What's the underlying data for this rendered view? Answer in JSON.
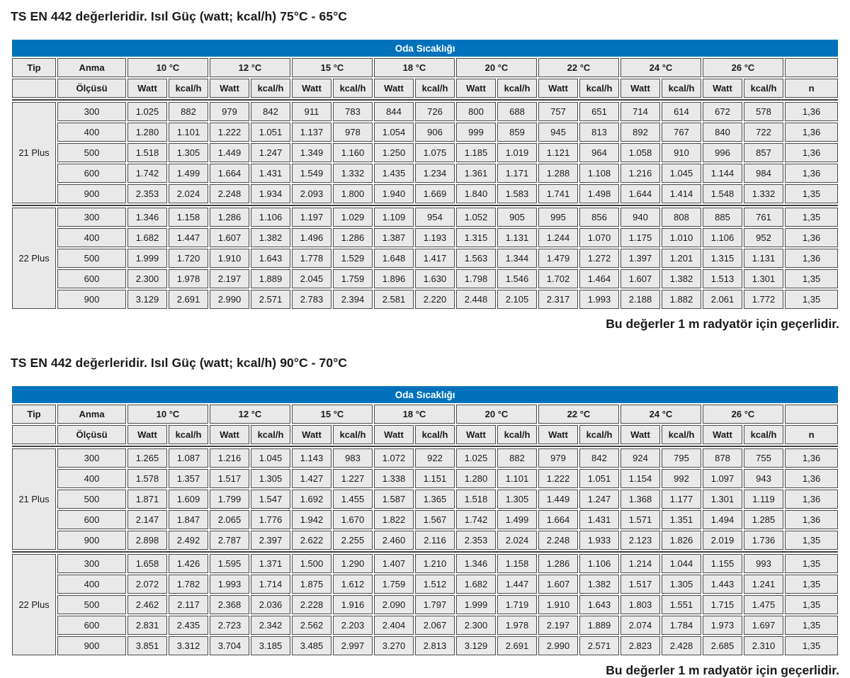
{
  "accent_color": "#0072bc",
  "banner_label": "Oda Sıcaklığı",
  "columns": {
    "tip_label": "Tip",
    "anma_label": "Anma",
    "olcusu_label": "Ölçüsü",
    "watt_label": "Watt",
    "kcal_label": "kcal/h",
    "n_label": "n",
    "temperatures": [
      "10 °C",
      "12 °C",
      "15 °C",
      "18 °C",
      "20 °C",
      "22 °C",
      "24 °C",
      "26 °C"
    ]
  },
  "tables": [
    {
      "title": "TS EN 442 değerleridir. Isıl Güç (watt; kcal/h) 75°C - 65°C",
      "footnote": "Bu değerler 1 m radyatör için geçerlidir.",
      "groups": [
        {
          "tip": "21 Plus",
          "rows": [
            {
              "size": "300",
              "values": [
                "1.025",
                "882",
                "979",
                "842",
                "911",
                "783",
                "844",
                "726",
                "800",
                "688",
                "757",
                "651",
                "714",
                "614",
                "672",
                "578"
              ],
              "n": "1,36"
            },
            {
              "size": "400",
              "values": [
                "1.280",
                "1.101",
                "1.222",
                "1.051",
                "1.137",
                "978",
                "1.054",
                "906",
                "999",
                "859",
                "945",
                "813",
                "892",
                "767",
                "840",
                "722"
              ],
              "n": "1,36"
            },
            {
              "size": "500",
              "values": [
                "1.518",
                "1.305",
                "1.449",
                "1.247",
                "1.349",
                "1.160",
                "1.250",
                "1.075",
                "1.185",
                "1.019",
                "1.121",
                "964",
                "1.058",
                "910",
                "996",
                "857"
              ],
              "n": "1,36"
            },
            {
              "size": "600",
              "values": [
                "1.742",
                "1.499",
                "1.664",
                "1.431",
                "1.549",
                "1.332",
                "1.435",
                "1.234",
                "1.361",
                "1.171",
                "1.288",
                "1.108",
                "1.216",
                "1.045",
                "1.144",
                "984"
              ],
              "n": "1,36"
            },
            {
              "size": "900",
              "values": [
                "2.353",
                "2.024",
                "2.248",
                "1.934",
                "2.093",
                "1.800",
                "1.940",
                "1.669",
                "1.840",
                "1.583",
                "1.741",
                "1.498",
                "1.644",
                "1.414",
                "1.548",
                "1.332"
              ],
              "n": "1,35"
            }
          ]
        },
        {
          "tip": "22 Plus",
          "rows": [
            {
              "size": "300",
              "values": [
                "1.346",
                "1.158",
                "1.286",
                "1.106",
                "1.197",
                "1.029",
                "1.109",
                "954",
                "1.052",
                "905",
                "995",
                "856",
                "940",
                "808",
                "885",
                "761"
              ],
              "n": "1,35"
            },
            {
              "size": "400",
              "values": [
                "1.682",
                "1.447",
                "1.607",
                "1.382",
                "1.496",
                "1.286",
                "1.387",
                "1.193",
                "1.315",
                "1.131",
                "1.244",
                "1.070",
                "1.175",
                "1.010",
                "1.106",
                "952"
              ],
              "n": "1,36"
            },
            {
              "size": "500",
              "values": [
                "1.999",
                "1.720",
                "1.910",
                "1.643",
                "1.778",
                "1.529",
                "1.648",
                "1.417",
                "1.563",
                "1.344",
                "1.479",
                "1.272",
                "1.397",
                "1.201",
                "1.315",
                "1.131"
              ],
              "n": "1,36"
            },
            {
              "size": "600",
              "values": [
                "2.300",
                "1.978",
                "2.197",
                "1.889",
                "2.045",
                "1.759",
                "1.896",
                "1.630",
                "1.798",
                "1.546",
                "1.702",
                "1.464",
                "1.607",
                "1.382",
                "1.513",
                "1.301"
              ],
              "n": "1,35"
            },
            {
              "size": "900",
              "values": [
                "3.129",
                "2.691",
                "2.990",
                "2.571",
                "2.783",
                "2.394",
                "2.581",
                "2.220",
                "2.448",
                "2.105",
                "2.317",
                "1.993",
                "2.188",
                "1.882",
                "2.061",
                "1.772"
              ],
              "n": "1,35"
            }
          ]
        }
      ]
    },
    {
      "title": "TS EN 442 değerleridir. Isıl Güç (watt; kcal/h) 90°C - 70°C",
      "footnote": "Bu değerler 1 m radyatör için geçerlidir.",
      "groups": [
        {
          "tip": "21 Plus",
          "rows": [
            {
              "size": "300",
              "values": [
                "1.265",
                "1.087",
                "1.216",
                "1.045",
                "1.143",
                "983",
                "1.072",
                "922",
                "1.025",
                "882",
                "979",
                "842",
                "924",
                "795",
                "878",
                "755"
              ],
              "n": "1,36"
            },
            {
              "size": "400",
              "values": [
                "1.578",
                "1.357",
                "1.517",
                "1.305",
                "1.427",
                "1.227",
                "1.338",
                "1.151",
                "1.280",
                "1.101",
                "1.222",
                "1.051",
                "1.154",
                "992",
                "1.097",
                "943"
              ],
              "n": "1,36"
            },
            {
              "size": "500",
              "values": [
                "1.871",
                "1.609",
                "1.799",
                "1.547",
                "1.692",
                "1.455",
                "1.587",
                "1.365",
                "1.518",
                "1.305",
                "1.449",
                "1.247",
                "1.368",
                "1.177",
                "1.301",
                "1.119"
              ],
              "n": "1,36"
            },
            {
              "size": "600",
              "values": [
                "2.147",
                "1.847",
                "2.065",
                "1.776",
                "1.942",
                "1.670",
                "1.822",
                "1.567",
                "1.742",
                "1.499",
                "1.664",
                "1.431",
                "1.571",
                "1.351",
                "1.494",
                "1.285"
              ],
              "n": "1,36"
            },
            {
              "size": "900",
              "values": [
                "2.898",
                "2.492",
                "2.787",
                "2.397",
                "2.622",
                "2.255",
                "2.460",
                "2.116",
                "2.353",
                "2.024",
                "2.248",
                "1.933",
                "2.123",
                "1.826",
                "2.019",
                "1.736"
              ],
              "n": "1,35"
            }
          ]
        },
        {
          "tip": "22 Plus",
          "rows": [
            {
              "size": "300",
              "values": [
                "1.658",
                "1.426",
                "1.595",
                "1.371",
                "1.500",
                "1.290",
                "1.407",
                "1.210",
                "1.346",
                "1.158",
                "1.286",
                "1.106",
                "1.214",
                "1.044",
                "1.155",
                "993"
              ],
              "n": "1,35"
            },
            {
              "size": "400",
              "values": [
                "2.072",
                "1.782",
                "1.993",
                "1.714",
                "1.875",
                "1.612",
                "1.759",
                "1.512",
                "1.682",
                "1.447",
                "1.607",
                "1.382",
                "1.517",
                "1.305",
                "1.443",
                "1.241"
              ],
              "n": "1,35"
            },
            {
              "size": "500",
              "values": [
                "2.462",
                "2.117",
                "2.368",
                "2.036",
                "2.228",
                "1.916",
                "2.090",
                "1.797",
                "1.999",
                "1.719",
                "1.910",
                "1.643",
                "1.803",
                "1.551",
                "1.715",
                "1.475"
              ],
              "n": "1,35"
            },
            {
              "size": "600",
              "values": [
                "2.831",
                "2.435",
                "2.723",
                "2.342",
                "2.562",
                "2.203",
                "2.404",
                "2.067",
                "2.300",
                "1.978",
                "2.197",
                "1.889",
                "2.074",
                "1.784",
                "1.973",
                "1.697"
              ],
              "n": "1,35"
            },
            {
              "size": "900",
              "values": [
                "3.851",
                "3.312",
                "3.704",
                "3.185",
                "3.485",
                "2.997",
                "3.270",
                "2.813",
                "3.129",
                "2.691",
                "2.990",
                "2.571",
                "2.823",
                "2.428",
                "2.685",
                "2.310"
              ],
              "n": "1,35"
            }
          ]
        }
      ]
    }
  ]
}
